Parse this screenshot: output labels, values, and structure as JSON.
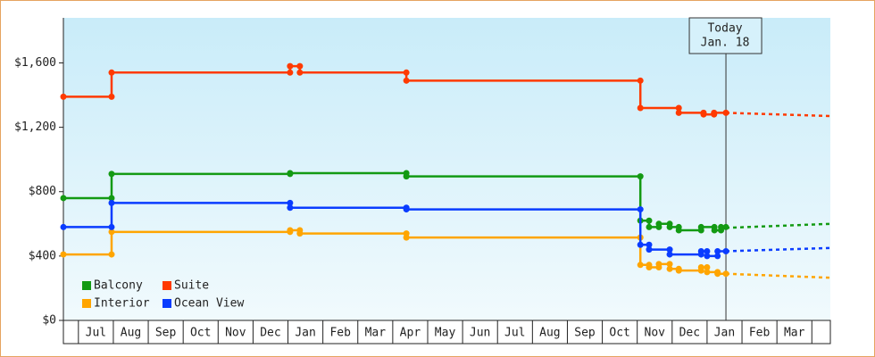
{
  "chart_data": {
    "type": "step-line",
    "xlim": [
      -0.43,
      21.53
    ],
    "xticks": [
      0,
      1,
      2,
      3,
      4,
      5,
      6,
      7,
      8,
      9,
      10,
      11,
      12,
      13,
      14,
      15,
      16,
      17,
      18,
      19,
      20,
      21
    ],
    "months": [
      "Jul",
      "Aug",
      "Sep",
      "Oct",
      "Nov",
      "Dec",
      "Jan",
      "Feb",
      "Mar",
      "Apr",
      "May",
      "Jun",
      "Jul",
      "Aug",
      "Sep",
      "Oct",
      "Nov",
      "Dec",
      "Jan",
      "Feb",
      "Mar"
    ],
    "ylim": [
      0,
      1880
    ],
    "yticks": [
      {
        "value": 0,
        "label": "$0"
      },
      {
        "value": 400,
        "label": "$400"
      },
      {
        "value": 800,
        "label": "$800"
      },
      {
        "value": 1200,
        "label": "$1,200"
      },
      {
        "value": 1600,
        "label": "$1,600"
      }
    ],
    "today_x": 18.54,
    "annotation": [
      "Today",
      "Jan. 18"
    ],
    "series": [
      {
        "name": "Balcony",
        "color": "#139a13",
        "x": [
          -0.43,
          0.95,
          0.95,
          6.06,
          6.06,
          9.39,
          9.39,
          16.09,
          16.09,
          16.34,
          16.34,
          16.62,
          16.62,
          16.93,
          16.93,
          17.19,
          17.19,
          17.83,
          17.83,
          18.21,
          18.21,
          18.4,
          18.4,
          18.54
        ],
        "values": [
          760,
          760,
          910,
          910,
          915,
          915,
          895,
          895,
          620,
          620,
          580,
          580,
          600,
          600,
          580,
          580,
          560,
          560,
          580,
          580,
          560,
          560,
          580,
          580
        ],
        "forecast": {
          "x": [
            18.54,
            21.53
          ],
          "values": [
            575,
            600
          ]
        }
      },
      {
        "name": "Suite",
        "color": "#ff3a00",
        "x": [
          -0.43,
          0.95,
          0.95,
          6.06,
          6.06,
          6.34,
          6.34,
          9.39,
          9.39,
          16.09,
          16.09,
          17.19,
          17.19,
          17.9,
          17.9,
          18.2,
          18.2,
          18.54
        ],
        "values": [
          1390,
          1390,
          1540,
          1540,
          1580,
          1580,
          1540,
          1540,
          1490,
          1490,
          1320,
          1320,
          1290,
          1290,
          1280,
          1280,
          1290,
          1290
        ],
        "forecast": {
          "x": [
            18.54,
            21.53
          ],
          "values": [
            1290,
            1270
          ]
        }
      },
      {
        "name": "Interior",
        "color": "#ffa500",
        "x": [
          -0.43,
          0.95,
          0.95,
          6.06,
          6.06,
          6.34,
          6.34,
          9.39,
          9.39,
          16.09,
          16.09,
          16.34,
          16.34,
          16.62,
          16.62,
          16.93,
          16.93,
          17.19,
          17.19,
          17.83,
          17.83,
          18.0,
          18.0,
          18.3,
          18.3,
          18.54
        ],
        "values": [
          410,
          410,
          550,
          550,
          560,
          560,
          540,
          540,
          515,
          515,
          345,
          345,
          330,
          330,
          350,
          350,
          320,
          320,
          310,
          310,
          330,
          330,
          300,
          300,
          290,
          290
        ],
        "forecast": {
          "x": [
            18.54,
            21.53
          ],
          "values": [
            290,
            265
          ]
        }
      },
      {
        "name": "Ocean View",
        "color": "#0a3cff",
        "x": [
          -0.43,
          0.95,
          0.95,
          6.06,
          6.06,
          9.39,
          9.39,
          16.09,
          16.09,
          16.34,
          16.34,
          16.93,
          16.93,
          17.83,
          17.83,
          18.0,
          18.0,
          18.3,
          18.3,
          18.54
        ],
        "values": [
          580,
          580,
          730,
          730,
          700,
          700,
          690,
          690,
          470,
          470,
          440,
          440,
          410,
          410,
          430,
          430,
          400,
          400,
          430,
          430
        ],
        "forecast": {
          "x": [
            18.54,
            21.53
          ],
          "values": [
            430,
            450
          ]
        }
      }
    ]
  }
}
